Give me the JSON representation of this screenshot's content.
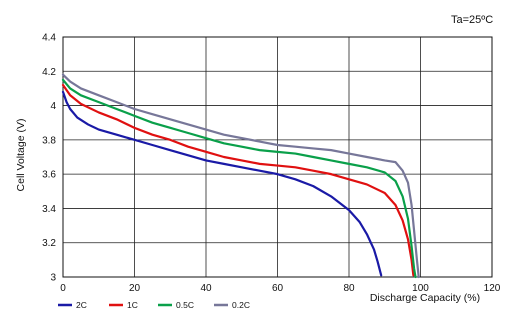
{
  "chart_data": {
    "type": "line",
    "title": "",
    "annotation": "Ta=25ºC",
    "xlabel": "Discharge  Capacity (%)",
    "ylabel": "Cell Voltage (V)",
    "xlim": [
      0,
      120
    ],
    "ylim": [
      3.0,
      4.4
    ],
    "xticks": [
      0,
      20,
      40,
      60,
      80,
      100,
      120
    ],
    "yticks": [
      3.0,
      3.2,
      3.4,
      3.6,
      3.8,
      4.0,
      4.2,
      4.4
    ],
    "xtick_labels": [
      "0",
      "20",
      "40",
      "60",
      "80",
      "100",
      "120"
    ],
    "ytick_labels": [
      "3",
      "3.2",
      "3.4",
      "3.6",
      "3.8",
      "4",
      "4.2",
      "4.4"
    ],
    "grid": true,
    "legend_position": "bottom-left",
    "series": [
      {
        "name": "2C",
        "color": "#1a1aa6",
        "points": [
          [
            0,
            4.08
          ],
          [
            1,
            4.02
          ],
          [
            2,
            3.98
          ],
          [
            4,
            3.93
          ],
          [
            7,
            3.89
          ],
          [
            10,
            3.86
          ],
          [
            15,
            3.83
          ],
          [
            20,
            3.8
          ],
          [
            25,
            3.77
          ],
          [
            30,
            3.74
          ],
          [
            35,
            3.71
          ],
          [
            40,
            3.68
          ],
          [
            45,
            3.66
          ],
          [
            50,
            3.64
          ],
          [
            55,
            3.62
          ],
          [
            60,
            3.6
          ],
          [
            65,
            3.57
          ],
          [
            70,
            3.53
          ],
          [
            75,
            3.47
          ],
          [
            80,
            3.39
          ],
          [
            83,
            3.32
          ],
          [
            85,
            3.25
          ],
          [
            87,
            3.16
          ],
          [
            88,
            3.09
          ],
          [
            89,
            3.01
          ]
        ]
      },
      {
        "name": "1C",
        "color": "#e01010",
        "points": [
          [
            0,
            4.12
          ],
          [
            2,
            4.06
          ],
          [
            5,
            4.01
          ],
          [
            10,
            3.96
          ],
          [
            15,
            3.92
          ],
          [
            20,
            3.87
          ],
          [
            25,
            3.83
          ],
          [
            30,
            3.8
          ],
          [
            35,
            3.76
          ],
          [
            40,
            3.73
          ],
          [
            45,
            3.7
          ],
          [
            50,
            3.68
          ],
          [
            55,
            3.66
          ],
          [
            60,
            3.65
          ],
          [
            65,
            3.64
          ],
          [
            70,
            3.62
          ],
          [
            75,
            3.6
          ],
          [
            80,
            3.57
          ],
          [
            85,
            3.54
          ],
          [
            90,
            3.49
          ],
          [
            93,
            3.42
          ],
          [
            95,
            3.33
          ],
          [
            96.5,
            3.22
          ],
          [
            97.5,
            3.1
          ],
          [
            98,
            3.01
          ]
        ]
      },
      {
        "name": "0.5C",
        "color": "#0aa04a",
        "points": [
          [
            0,
            4.15
          ],
          [
            2,
            4.1
          ],
          [
            5,
            4.06
          ],
          [
            10,
            4.02
          ],
          [
            15,
            3.98
          ],
          [
            20,
            3.94
          ],
          [
            25,
            3.9
          ],
          [
            30,
            3.87
          ],
          [
            35,
            3.84
          ],
          [
            40,
            3.81
          ],
          [
            45,
            3.78
          ],
          [
            50,
            3.76
          ],
          [
            55,
            3.74
          ],
          [
            60,
            3.73
          ],
          [
            65,
            3.72
          ],
          [
            70,
            3.7
          ],
          [
            75,
            3.68
          ],
          [
            80,
            3.66
          ],
          [
            85,
            3.64
          ],
          [
            90,
            3.61
          ],
          [
            93,
            3.56
          ],
          [
            95,
            3.47
          ],
          [
            96.5,
            3.34
          ],
          [
            97.5,
            3.18
          ],
          [
            98.2,
            3.05
          ],
          [
            98.6,
            3.0
          ]
        ]
      },
      {
        "name": "0.2C",
        "color": "#777799",
        "points": [
          [
            0,
            4.18
          ],
          [
            2,
            4.14
          ],
          [
            5,
            4.1
          ],
          [
            10,
            4.06
          ],
          [
            15,
            4.02
          ],
          [
            20,
            3.98
          ],
          [
            25,
            3.95
          ],
          [
            30,
            3.92
          ],
          [
            35,
            3.89
          ],
          [
            40,
            3.86
          ],
          [
            45,
            3.83
          ],
          [
            50,
            3.81
          ],
          [
            55,
            3.79
          ],
          [
            60,
            3.77
          ],
          [
            65,
            3.76
          ],
          [
            70,
            3.75
          ],
          [
            75,
            3.74
          ],
          [
            80,
            3.72
          ],
          [
            85,
            3.7
          ],
          [
            90,
            3.68
          ],
          [
            93,
            3.67
          ],
          [
            95,
            3.62
          ],
          [
            96.5,
            3.55
          ],
          [
            97.5,
            3.42
          ],
          [
            98.3,
            3.25
          ],
          [
            99,
            3.1
          ],
          [
            99.5,
            3.0
          ]
        ]
      }
    ]
  }
}
